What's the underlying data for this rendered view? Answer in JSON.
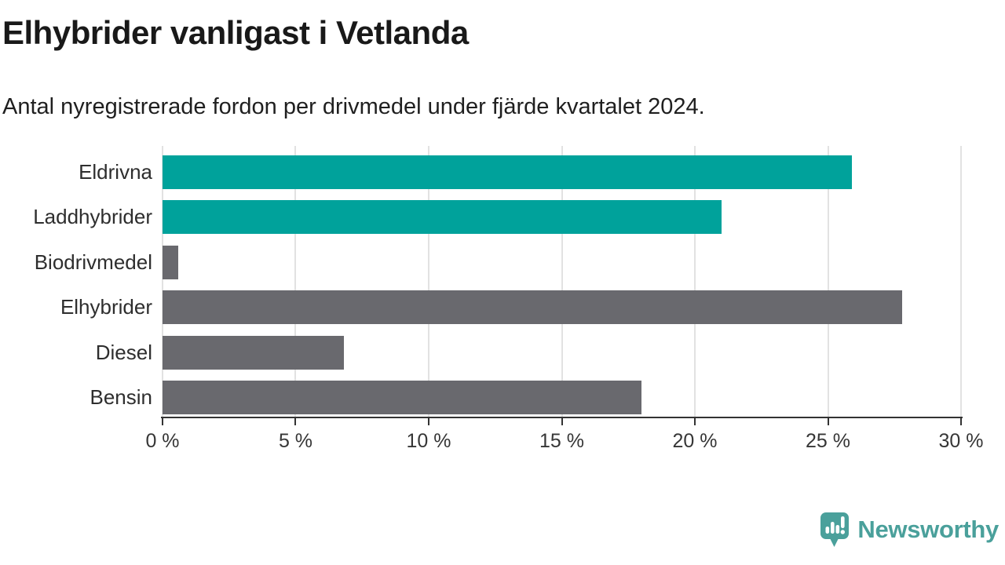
{
  "header": {
    "title": "Elhybrider vanligast i Vetlanda",
    "subtitle": "Antal nyregistrerade fordon per drivmedel under fjärde kvartalet 2024."
  },
  "chart_data": {
    "type": "bar",
    "orientation": "horizontal",
    "title": "Elhybrider vanligast i Vetlanda",
    "subtitle": "Antal nyregistrerade fordon per drivmedel under fjärde kvartalet 2024.",
    "categories": [
      "Eldrivna",
      "Laddhybrider",
      "Biodrivmedel",
      "Elhybrider",
      "Diesel",
      "Bensin"
    ],
    "values": [
      25.9,
      21.0,
      0.6,
      27.8,
      6.8,
      18.0
    ],
    "unit": "%",
    "bar_colors": [
      "#00a29b",
      "#00a29b",
      "#69696e",
      "#69696e",
      "#69696e",
      "#69696e"
    ],
    "xlim": [
      0,
      30
    ],
    "x_ticks": [
      0,
      5,
      10,
      15,
      20,
      25,
      30
    ],
    "x_tick_labels": [
      "0 %",
      "5 %",
      "10 %",
      "15 %",
      "20 %",
      "25 %",
      "30 %"
    ],
    "grid": true,
    "legend": "none",
    "xlabel": "",
    "ylabel": ""
  },
  "colors": {
    "highlight": "#00a29b",
    "default_bar": "#69696e",
    "gridline": "#e2e2e2",
    "axis": "#333333",
    "brand": "#4aa09b"
  },
  "footer": {
    "brand": "Newsworthy"
  }
}
